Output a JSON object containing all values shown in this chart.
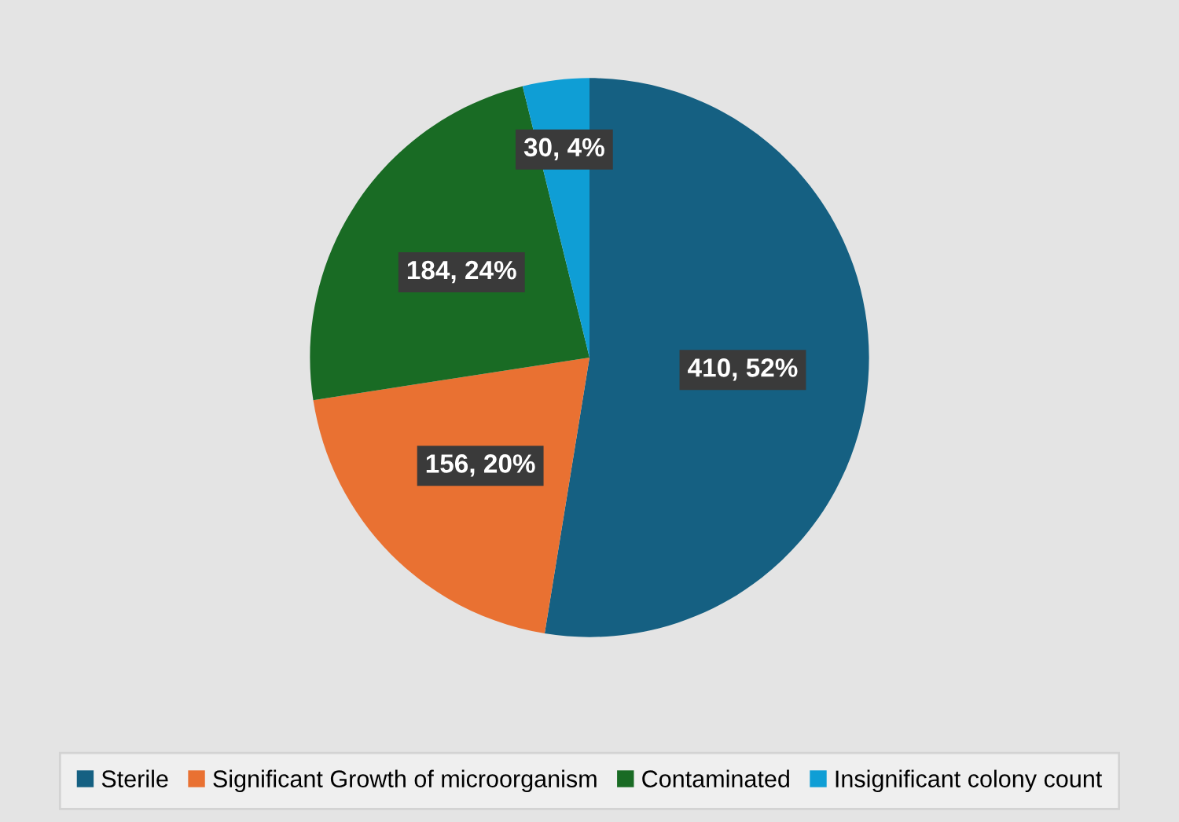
{
  "chart_data": {
    "type": "pie",
    "categories": [
      "Sterile",
      "Significant Growth of microorganism",
      "Contaminated",
      "Insignificant colony count"
    ],
    "values": [
      410,
      156,
      184,
      30
    ],
    "colors": [
      "#156082",
      "#e97132",
      "#196b24",
      "#0f9ed5"
    ],
    "value_labels": [
      "410, 52%",
      "156, 20%",
      "184, 24%",
      "30, 4%"
    ],
    "legend": "bottom"
  }
}
